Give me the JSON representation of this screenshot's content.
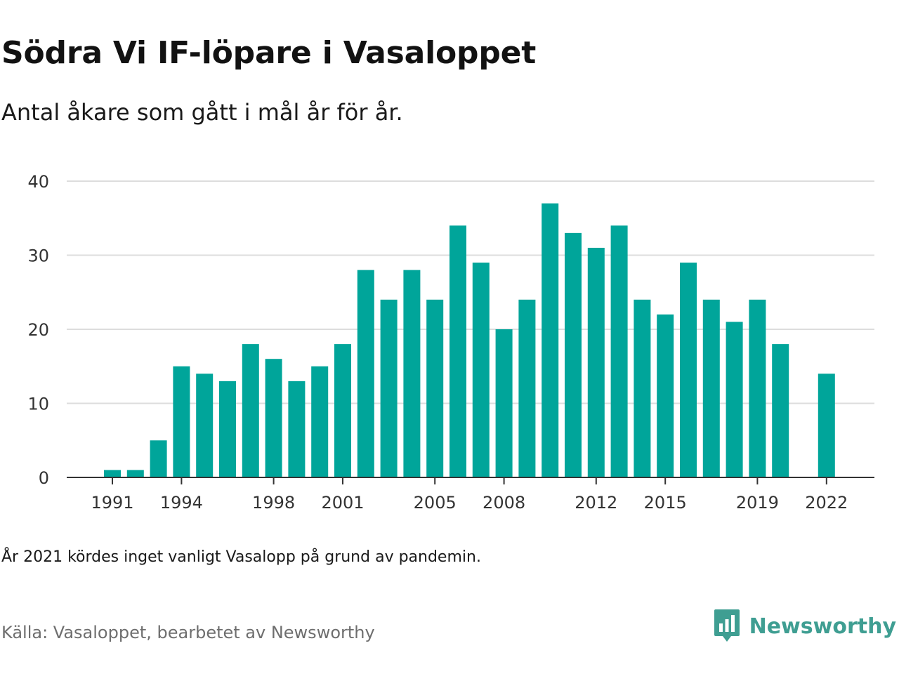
{
  "header": {
    "title": "Södra Vi IF-löpare i Vasaloppet",
    "subtitle": "Antal åkare som gått i mål år för år."
  },
  "footer": {
    "note": "År 2021 kördes inget vanligt Vasalopp på grund av pandemin.",
    "source": "Källa: Vasaloppet, bearbetet av Newsworthy",
    "brand": "Newsworthy",
    "brand_icon": "newsworthy-logo-icon"
  },
  "colors": {
    "bar": "#00a59a",
    "grid": "#dddddd",
    "axis": "#333333",
    "brand": "#3f9e92"
  },
  "chart_data": {
    "type": "bar",
    "title": "Södra Vi IF-löpare i Vasaloppet",
    "subtitle": "Antal åkare som gått i mål år för år.",
    "categories": [
      "1991",
      "1992",
      "1993",
      "1994",
      "1995",
      "1996",
      "1997",
      "1998",
      "1999",
      "2000",
      "2001",
      "2002",
      "2003",
      "2004",
      "2005",
      "2006",
      "2007",
      "2008",
      "2009",
      "2010",
      "2011",
      "2012",
      "2013",
      "2014",
      "2015",
      "2016",
      "2017",
      "2018",
      "2019",
      "2020",
      "2021",
      "2022"
    ],
    "values": [
      1,
      1,
      5,
      15,
      14,
      13,
      18,
      16,
      13,
      15,
      18,
      28,
      24,
      28,
      24,
      34,
      29,
      20,
      24,
      37,
      33,
      31,
      34,
      24,
      22,
      29,
      24,
      21,
      24,
      18,
      null,
      14
    ],
    "x_tick_labels": [
      "1991",
      "1994",
      "1998",
      "2001",
      "2005",
      "2008",
      "2012",
      "2015",
      "2019",
      "2022"
    ],
    "y_ticks": [
      0,
      10,
      20,
      30,
      40
    ],
    "ylim": [
      0,
      40
    ],
    "xlabel": "",
    "ylabel": "",
    "grid": true,
    "legend": "none"
  }
}
